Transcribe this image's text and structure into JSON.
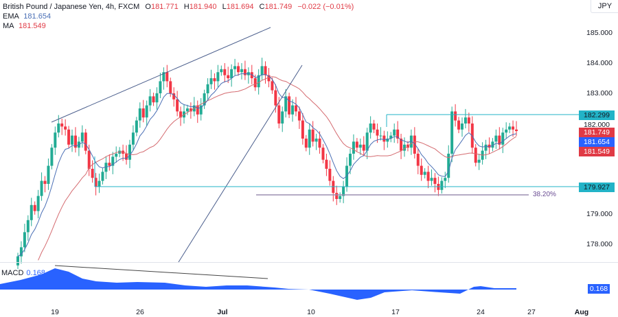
{
  "header": {
    "symbol_title": "British Pound / Japanese Yen, 4h, FXCM",
    "ohlc": {
      "o_label": "O",
      "o": "181.771",
      "h_label": "H",
      "h": "181.940",
      "l_label": "L",
      "l": "181.694",
      "c_label": "C",
      "c": "181.749",
      "change": "−0.022 (−0.01%)"
    },
    "ema_label": "EMA",
    "ema_value": "181.654",
    "ma_label": "MA",
    "ma_value": "181.549"
  },
  "currency_button": "JPY",
  "price_axis": {
    "ticks": [
      "185.000",
      "184.000",
      "183.000",
      "182.000",
      "179.000",
      "178.000"
    ],
    "tags": {
      "resistance": "182.299",
      "close": "181.749",
      "ema": "181.654",
      "ma": "181.549",
      "support": "179.927"
    }
  },
  "fib_label": "38.20%",
  "macd": {
    "label": "MACD",
    "value": "0.168",
    "axis_tag": "0.168"
  },
  "time_axis": {
    "ticks": [
      "19",
      "26",
      "Jul",
      "10",
      "17",
      "24",
      "27",
      "Aug"
    ]
  },
  "colors": {
    "up": "#22ab94",
    "down": "#f23645",
    "ema": "#4a6fb5",
    "ma": "#d46a6f",
    "trendline": "#4a5e8c",
    "hline": "#22b3c7",
    "fib": "#9b8fb0",
    "macd": "#2962ff"
  },
  "chart_data": {
    "type": "candlestick",
    "title": "British Pound / Japanese Yen, 4h, FXCM",
    "xlabel": "",
    "ylabel": "JPY",
    "ylim": [
      177.5,
      185.5
    ],
    "x_ticks": [
      "19",
      "26",
      "Jul",
      "10",
      "17",
      "24",
      "27",
      "Aug"
    ],
    "y_ticks": [
      178,
      179,
      182,
      183,
      184,
      185
    ],
    "indicators": {
      "EMA": 181.654,
      "MA": 181.549,
      "MACD": 0.168
    },
    "annotations": [
      {
        "type": "hline",
        "price": 182.299,
        "label": "182.299"
      },
      {
        "type": "hline",
        "price": 179.927,
        "label": "179.927"
      },
      {
        "type": "fib",
        "price": 179.7,
        "label": "38.20%"
      },
      {
        "type": "channel",
        "description": "rising channel from mid-June to early July"
      },
      {
        "type": "trendline",
        "description": "bearish MACD divergence line"
      }
    ],
    "last": {
      "open": 181.771,
      "high": 181.94,
      "low": 181.694,
      "close": 181.749,
      "change": -0.022,
      "change_pct": -0.01
    },
    "closes": [
      177.6,
      177.9,
      178.4,
      178.8,
      179.3,
      179.1,
      179.6,
      180.1,
      180.0,
      180.6,
      181.2,
      181.7,
      182.0,
      181.9,
      181.8,
      181.3,
      181.6,
      181.2,
      181.4,
      181.7,
      181.1,
      180.5,
      180.2,
      179.9,
      180.1,
      180.4,
      180.7,
      180.6,
      180.9,
      181.0,
      181.1,
      181.0,
      180.8,
      181.3,
      181.7,
      182.1,
      182.5,
      182.2,
      182.6,
      182.9,
      182.7,
      183.0,
      183.4,
      183.7,
      183.4,
      183.0,
      182.8,
      182.4,
      182.2,
      182.4,
      182.5,
      182.4,
      182.6,
      182.3,
      182.6,
      183.0,
      183.3,
      183.5,
      183.4,
      183.7,
      183.8,
      183.6,
      183.5,
      183.8,
      183.9,
      183.7,
      183.8,
      183.6,
      183.7,
      183.5,
      183.2,
      183.6,
      183.9,
      183.6,
      183.4,
      183.1,
      182.6,
      182.0,
      182.4,
      182.9,
      182.3,
      182.6,
      182.4,
      182.1,
      181.5,
      181.2,
      181.8,
      181.4,
      181.5,
      181.2,
      180.8,
      180.5,
      180.1,
      179.7,
      179.5,
      179.6,
      179.9,
      180.6,
      181.0,
      181.4,
      181.2,
      181.3,
      181.1,
      181.7,
      182.0,
      181.8,
      181.6,
      181.6,
      181.4,
      181.5,
      181.6,
      181.8,
      181.5,
      181.1,
      181.3,
      181.2,
      181.6,
      181.0,
      180.6,
      180.3,
      180.4,
      180.1,
      180.2,
      180.0,
      179.8,
      180.1,
      180.2,
      181.0,
      182.4,
      182.1,
      181.8,
      182.0,
      182.2,
      182.0,
      181.2,
      180.7,
      180.8,
      181.1,
      181.3,
      181.2,
      181.4,
      181.6,
      181.3,
      181.7,
      181.8,
      181.9,
      181.8,
      181.75
    ]
  }
}
